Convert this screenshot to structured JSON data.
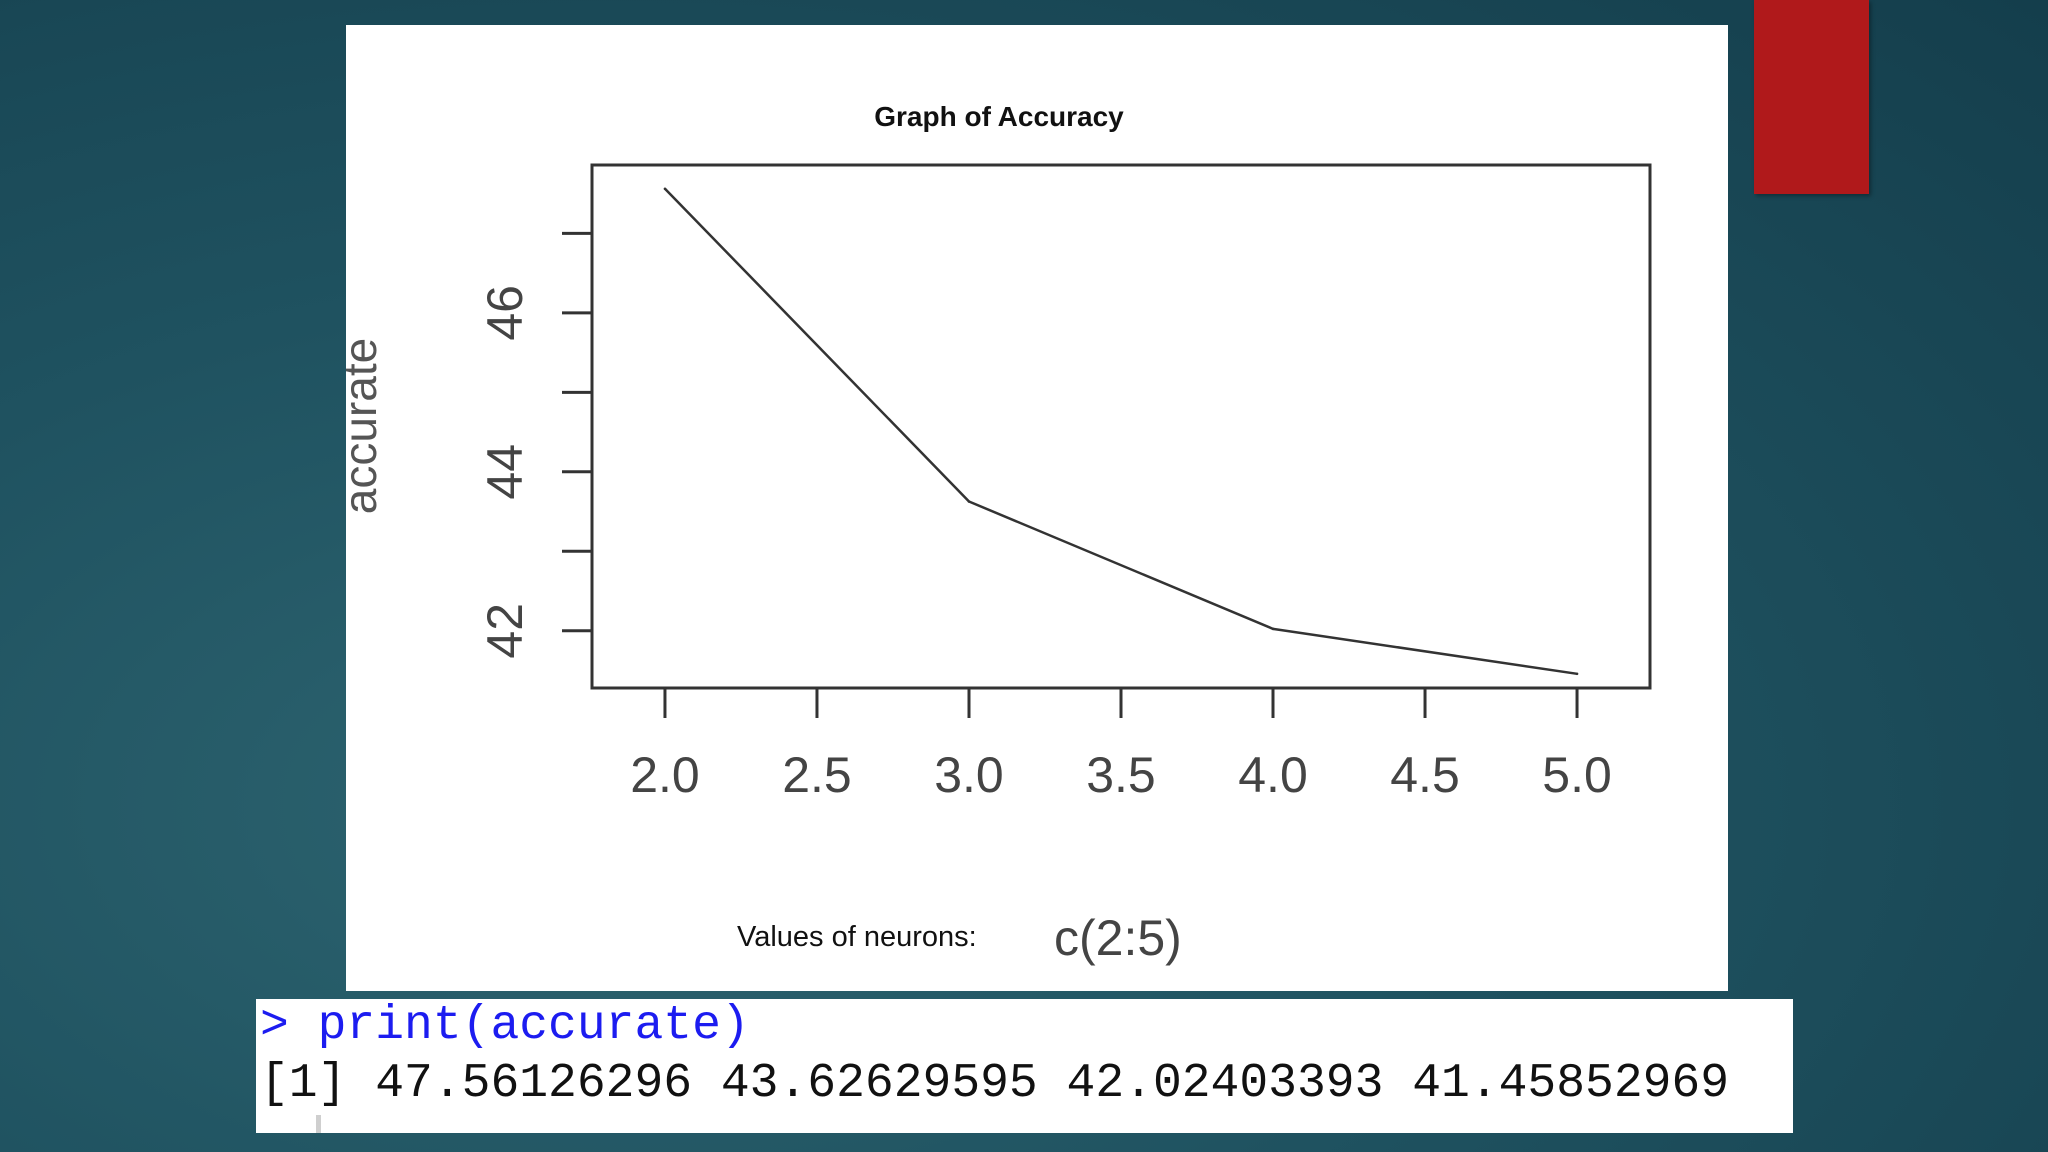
{
  "slide": {
    "accent_color": "#b0191b",
    "background_color": "#1f5260"
  },
  "chart_data": {
    "type": "line",
    "title": "Graph of Accuracy",
    "xlabel": "c(2:5)",
    "ylabel": "accurate",
    "x": [
      2,
      3,
      4,
      5
    ],
    "series": [
      {
        "values": [
          47.56126296,
          43.62629595,
          42.02403393,
          41.45852969
        ]
      }
    ],
    "xlim": [
      1.76,
      5.24
    ],
    "ylim": [
      41.28,
      47.86
    ],
    "xticks": [
      "2.0",
      "2.5",
      "3.0",
      "3.5",
      "4.0",
      "4.5",
      "5.0"
    ],
    "yticks": [
      "42",
      "44",
      "46"
    ],
    "y_minor_ticks": [
      43,
      45,
      47
    ],
    "grid": false,
    "line_color": "#333333"
  },
  "caption": {
    "label": "Values of neurons:",
    "expression": "c(2:5)"
  },
  "console": {
    "command": "> print(accurate)",
    "output": "[1] 47.56126296 43.62629595 42.02403393 41.45852969"
  }
}
